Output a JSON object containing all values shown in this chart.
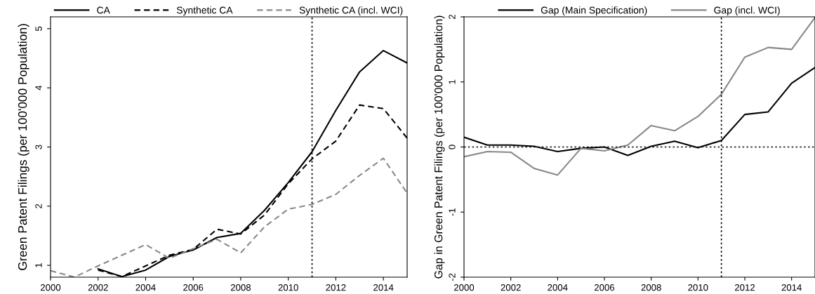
{
  "chart_data": [
    {
      "type": "line",
      "ylabel": "Green Patent Filings (per 100'000 Population)",
      "x": [
        2000,
        2001,
        2002,
        2003,
        2004,
        2005,
        2006,
        2007,
        2008,
        2009,
        2010,
        2011,
        2012,
        2013,
        2014,
        2015
      ],
      "series": [
        {
          "name": "CA",
          "color": "#000000",
          "line_style": "solid",
          "values": [
            null,
            null,
            0.94,
            0.81,
            0.92,
            1.15,
            1.26,
            1.47,
            1.54,
            1.93,
            2.4,
            2.92,
            3.62,
            4.27,
            4.63,
            4.42
          ]
        },
        {
          "name": "Synthetic CA",
          "color": "#000000",
          "line_style": "dashed",
          "values": [
            null,
            null,
            0.92,
            0.81,
            0.99,
            1.17,
            1.27,
            1.61,
            1.53,
            1.85,
            2.38,
            2.8,
            3.1,
            3.71,
            3.65,
            3.15
          ]
        },
        {
          "name": "Synthetic CA (incl. WCI)",
          "color": "#888888",
          "line_style": "dashed",
          "values": [
            0.91,
            0.8,
            0.99,
            1.17,
            1.35,
            1.12,
            1.28,
            1.44,
            1.21,
            1.65,
            1.95,
            2.03,
            2.2,
            2.52,
            2.81,
            2.22
          ]
        }
      ],
      "xlim": [
        2000,
        2015
      ],
      "xticks": [
        2000,
        2002,
        2004,
        2006,
        2008,
        2010,
        2012,
        2014
      ],
      "ylim": [
        0.8,
        5.2
      ],
      "yticks": [
        1,
        2,
        3,
        4,
        5
      ],
      "ref_lines": [
        {
          "axis": "x",
          "value": 2011,
          "line_style": "dotted",
          "color": "#000000"
        }
      ],
      "legend": "top",
      "grid": false
    },
    {
      "type": "line",
      "ylabel": "Gap in Green Patent Filings (per 100'000 Population)",
      "x": [
        2000,
        2001,
        2002,
        2003,
        2004,
        2005,
        2006,
        2007,
        2008,
        2009,
        2010,
        2011,
        2012,
        2013,
        2014,
        2015
      ],
      "series": [
        {
          "name": "Gap (Main Specification)",
          "color": "#000000",
          "line_style": "solid",
          "values": [
            0.15,
            0.03,
            0.03,
            0.01,
            -0.07,
            -0.02,
            0,
            -0.13,
            0.01,
            0.09,
            -0.01,
            0.1,
            0.5,
            0.54,
            0.98,
            1.22
          ]
        },
        {
          "name": "Gap (incl. WCI)",
          "color": "#888888",
          "line_style": "solid",
          "values": [
            -0.15,
            -0.07,
            -0.08,
            -0.33,
            -0.43,
            -0.02,
            -0.06,
            0.03,
            0.33,
            0.25,
            0.47,
            0.81,
            1.38,
            1.53,
            1.5,
            1.99
          ]
        }
      ],
      "xlim": [
        2000,
        2015
      ],
      "xticks": [
        2000,
        2002,
        2004,
        2006,
        2008,
        2010,
        2012,
        2014
      ],
      "ylim": [
        -2,
        2
      ],
      "yticks": [
        -2,
        -1,
        0,
        1,
        2
      ],
      "ref_lines": [
        {
          "axis": "x",
          "value": 2011,
          "line_style": "dotted",
          "color": "#000000"
        },
        {
          "axis": "y",
          "value": 0,
          "line_style": "dotted",
          "color": "#000000"
        }
      ],
      "legend": "top",
      "grid": false
    }
  ]
}
